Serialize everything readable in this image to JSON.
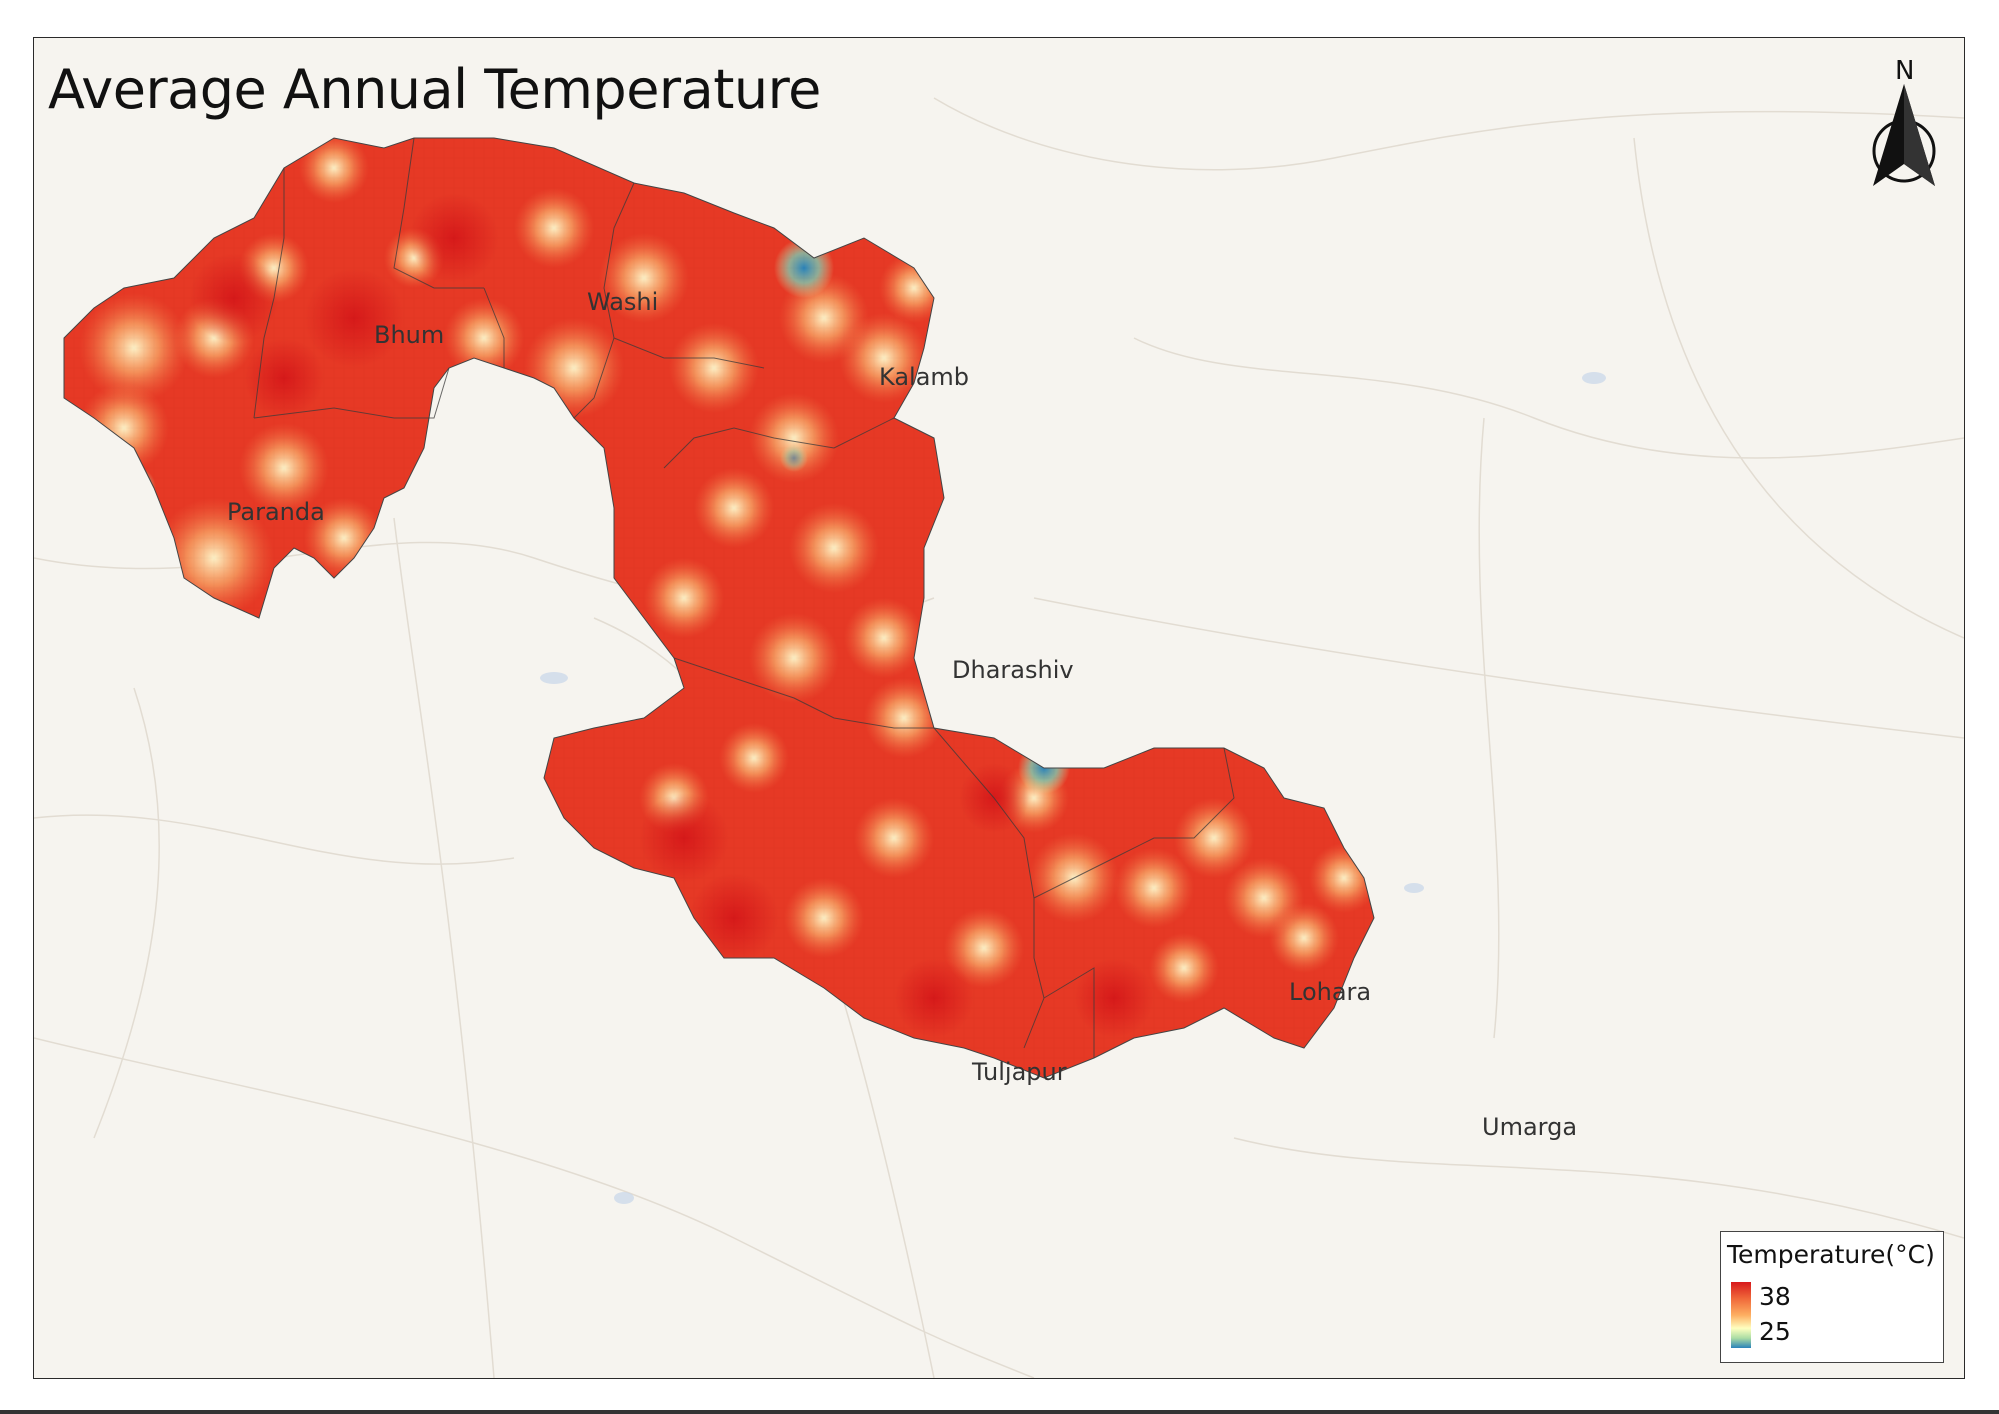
{
  "map": {
    "title": "Average Annual Temperature",
    "north_label": "N",
    "regions": [
      "Bhum",
      "Washi",
      "Kalamb",
      "Paranda",
      "Dharashiv",
      "Lohara",
      "Tuljapur",
      "Umarga"
    ],
    "legend": {
      "title": "Temperature(°C)",
      "max_label": "38",
      "min_label": "25",
      "color_ramp": [
        "#d7191c",
        "#f0683a",
        "#fdae61",
        "#ffffbf",
        "#abdda4",
        "#2b83ba"
      ]
    }
  }
}
